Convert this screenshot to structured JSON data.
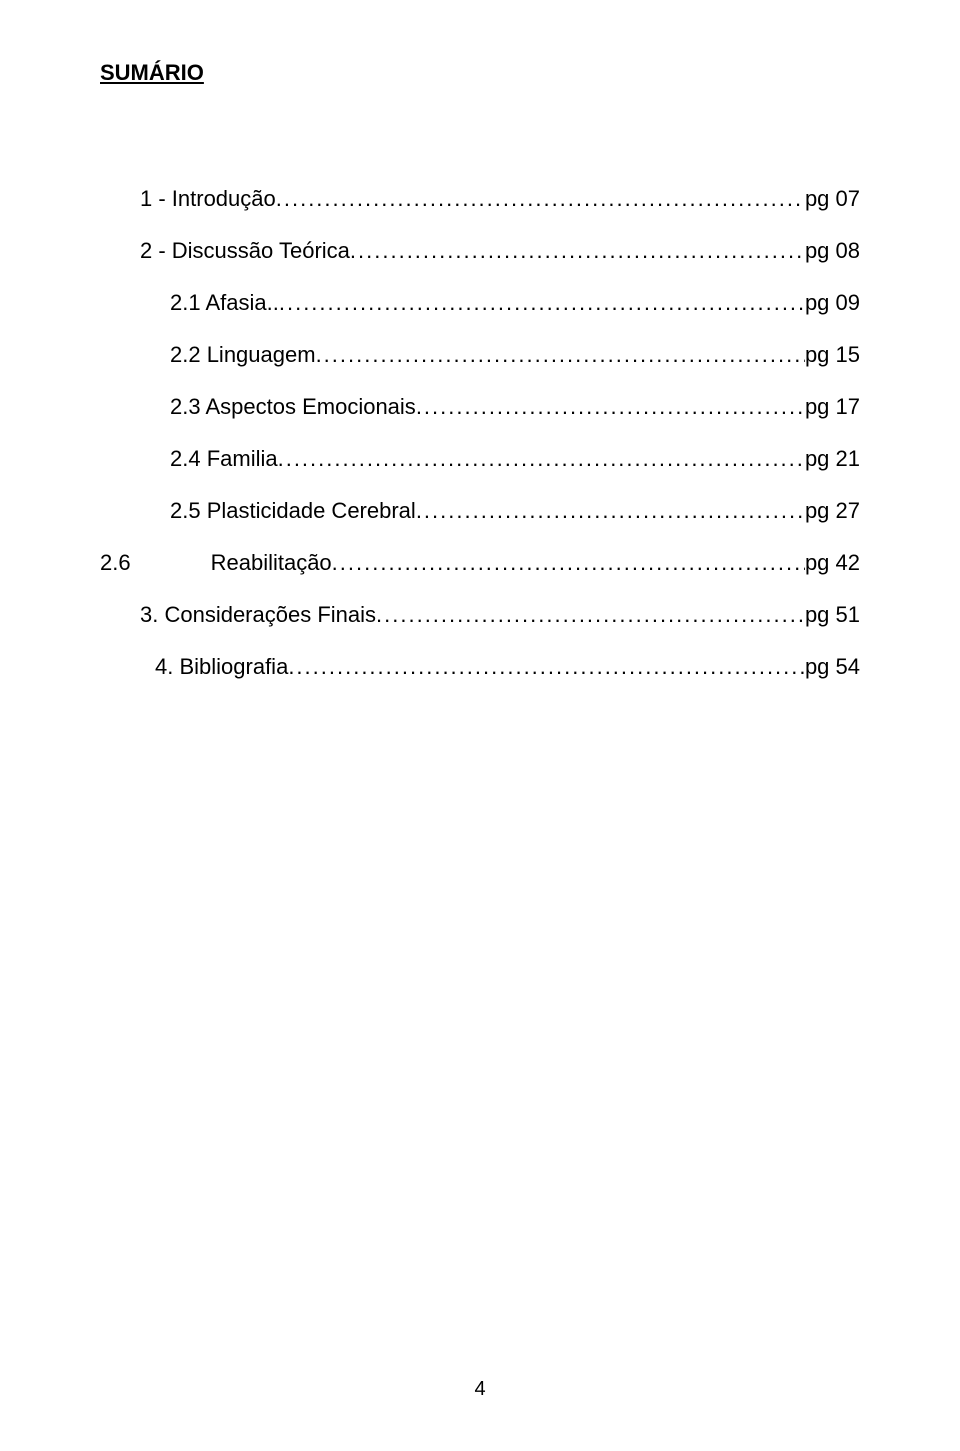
{
  "title": "SUMÁRIO",
  "entries": {
    "intro": {
      "label": "1 - Introdução",
      "page": "pg 07"
    },
    "discussao": {
      "label": "2 - Discussão Teórica",
      "page": "pg 08"
    },
    "afasia": {
      "label": "2.1 Afasia..",
      "page": "pg 09"
    },
    "linguagem": {
      "label": "2.2 Linguagem",
      "page": "pg 15"
    },
    "aspectos": {
      "label": "2.3 Aspectos Emocionais",
      "page": "pg 17"
    },
    "familia": {
      "label": "2.4 Familia",
      "page": "pg 21"
    },
    "plasticidade": {
      "label": "2.5 Plasticidade Cerebral",
      "page": "pg 27"
    },
    "reabilitacao": {
      "sec": "2.6",
      "label": "Reabilitação",
      "page": "pg 42"
    },
    "consideracoes": {
      "label": "3. Considerações Finais",
      "page": "pg 51"
    },
    "bibliografia": {
      "label": "4. Bibliografia",
      "page": "pg 54"
    }
  },
  "dots_fill": ".............................................................................................................................................................................",
  "page_number": "4",
  "styling": {
    "background_color": "#ffffff",
    "text_color": "#000000",
    "title_fontsize": 22,
    "body_fontsize": 22,
    "font_family": "Arial"
  }
}
